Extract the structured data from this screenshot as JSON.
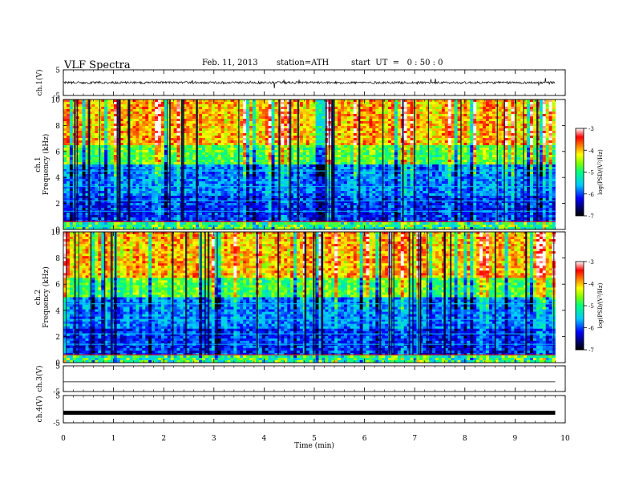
{
  "header": {
    "title": "VLF  Spectra",
    "date": "Feb. 11, 2013",
    "station": "station=ATH",
    "start": "start  UT  =   0 : 50 : 0"
  },
  "chart_data": [
    {
      "type": "line",
      "panel": "ch1-waveform",
      "ylabel": "ch.1(V)",
      "ylim": [
        -5,
        5
      ],
      "yticks": [
        "5",
        "-5"
      ],
      "x": [
        0,
        9.8
      ],
      "note_level": 0
    },
    {
      "type": "heatmap",
      "panel": "ch1-spectrogram",
      "ylabel_top": "ch.1",
      "ylabel": "Frequency  (kHz)",
      "ylim": [
        0,
        10
      ],
      "yticks": [
        "0",
        "2",
        "4",
        "6",
        "8",
        "10"
      ],
      "colorbar": {
        "label": "log(PSD/(V²/Hz)",
        "range": [
          -7,
          -3
        ],
        "ticks": [
          "-3",
          "-4",
          "-5",
          "-6",
          "-7"
        ]
      }
    },
    {
      "type": "heatmap",
      "panel": "ch2-spectrogram",
      "ylabel_top": "ch.2",
      "ylabel": "Frequency  (kHz)",
      "ylim": [
        0,
        10
      ],
      "yticks": [
        "0",
        "2",
        "4",
        "6",
        "8",
        "10"
      ],
      "colorbar": {
        "label": "log(PSD/(V²/Hz)",
        "range": [
          -7,
          -3
        ],
        "ticks": [
          "-3",
          "-4",
          "-5",
          "-6",
          "-7"
        ]
      }
    },
    {
      "type": "line",
      "panel": "ch3-waveform",
      "ylabel": "ch.3(V)",
      "ylim": [
        -5,
        5
      ],
      "yticks": [
        "5",
        "-5"
      ],
      "note_level": -1.2
    },
    {
      "type": "line",
      "panel": "ch4-waveform",
      "ylabel": "ch.4(V)",
      "ylim": [
        -5,
        5
      ],
      "yticks": [
        "5",
        "-5"
      ],
      "note_level": -1.3
    }
  ],
  "xaxis": {
    "label": "Time  (min)",
    "xlim": [
      0,
      10
    ],
    "ticks": [
      "0",
      "1",
      "2",
      "3",
      "4",
      "5",
      "6",
      "7",
      "8",
      "9",
      "10"
    ]
  },
  "colors": {
    "high": "#ff0000",
    "mid": "#22dd22",
    "low": "#0000c8",
    "floor": "#000000"
  }
}
